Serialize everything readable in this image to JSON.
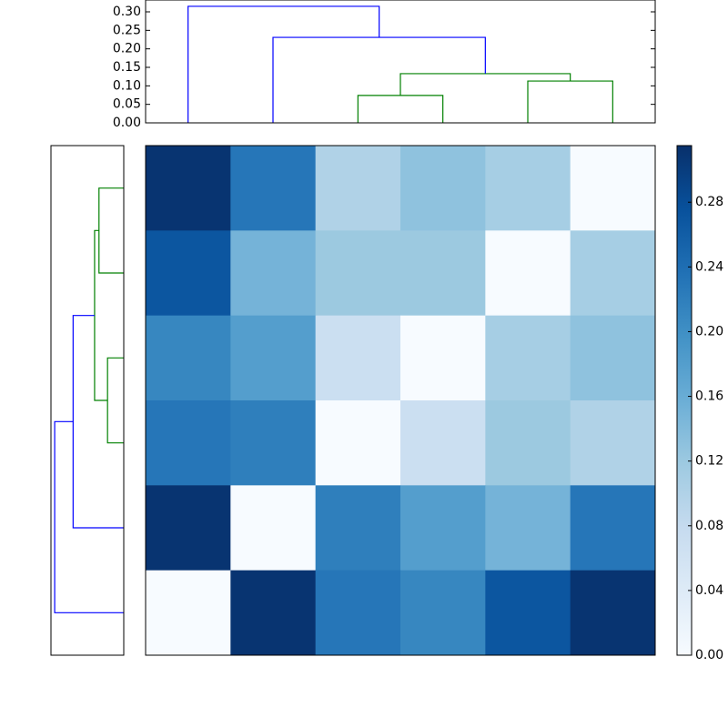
{
  "chart_data": {
    "type": "clustermap",
    "cmap": [
      "#f7fbff",
      "#deebf7",
      "#c6dbef",
      "#9ecae1",
      "#6baed6",
      "#4292c6",
      "#2171b5",
      "#08519c",
      "#08306b"
    ],
    "clim": [
      0,
      0.315
    ],
    "matrix": [
      [
        0.31,
        0.23,
        0.1,
        0.13,
        0.11,
        0.0
      ],
      [
        0.27,
        0.15,
        0.12,
        0.12,
        0.0,
        0.11
      ],
      [
        0.21,
        0.18,
        0.07,
        0.0,
        0.11,
        0.13
      ],
      [
        0.23,
        0.22,
        0.0,
        0.07,
        0.12,
        0.1
      ],
      [
        0.31,
        0.0,
        0.22,
        0.18,
        0.15,
        0.23
      ],
      [
        0.0,
        0.31,
        0.23,
        0.21,
        0.27,
        0.31
      ]
    ],
    "dendrogram": {
      "icoord": [
        [
          25,
          25,
          35,
          35
        ],
        [
          45,
          45,
          55,
          55
        ],
        [
          30,
          30,
          50,
          50
        ],
        [
          15,
          15,
          40,
          40
        ],
        [
          5,
          5,
          27.5,
          27.5
        ]
      ],
      "dcoord": [
        [
          0,
          0.074,
          0.074,
          0
        ],
        [
          0,
          0.113,
          0.113,
          0
        ],
        [
          0.074,
          0.133,
          0.133,
          0.113
        ],
        [
          0,
          0.231,
          0.231,
          0.133
        ],
        [
          0,
          0.315,
          0.315,
          0.231
        ]
      ],
      "colors": [
        "#008000",
        "#008000",
        "#008000",
        "#0000ff",
        "#0000ff"
      ]
    },
    "ylim": [
      0,
      0.332
    ],
    "yticks": [
      {
        "value": 0,
        "label": "0.00"
      },
      {
        "value": 0.05,
        "label": "0.05"
      },
      {
        "value": 0.1,
        "label": "0.10"
      },
      {
        "value": 0.15,
        "label": "0.15"
      },
      {
        "value": 0.2,
        "label": "0.20"
      },
      {
        "value": 0.25,
        "label": "0.25"
      },
      {
        "value": 0.3,
        "label": "0.30"
      }
    ],
    "cbar_ticks": [
      {
        "value": 0,
        "label": "0.00"
      },
      {
        "value": 0.04,
        "label": "0.04"
      },
      {
        "value": 0.08,
        "label": "0.08"
      },
      {
        "value": 0.12,
        "label": "0.12"
      },
      {
        "value": 0.16,
        "label": "0.16"
      },
      {
        "value": 0.2,
        "label": "0.20"
      },
      {
        "value": 0.24,
        "label": "0.24"
      },
      {
        "value": 0.28,
        "label": "0.28"
      }
    ]
  }
}
